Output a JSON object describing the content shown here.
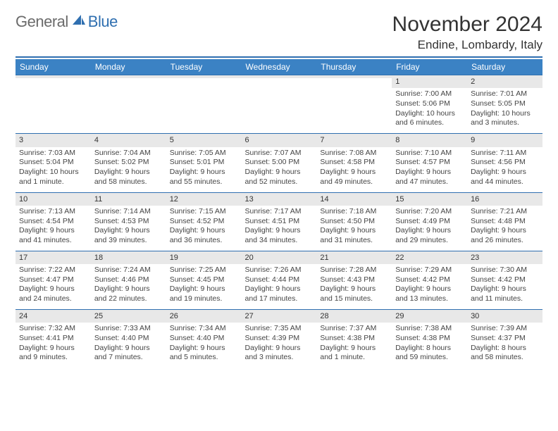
{
  "logo": {
    "gray": "General",
    "blue": "Blue"
  },
  "title": "November 2024",
  "location": "Endine, Lombardy, Italy",
  "colors": {
    "header_bg": "#3b82c4",
    "rule": "#2f6fb0",
    "daynum_bg": "#e8e8e8",
    "text": "#333333",
    "logo_gray": "#6b6b6b",
    "logo_blue": "#2f6fb0"
  },
  "weekdays": [
    "Sunday",
    "Monday",
    "Tuesday",
    "Wednesday",
    "Thursday",
    "Friday",
    "Saturday"
  ],
  "weeks": [
    [
      {
        "day": "",
        "sunrise": "",
        "sunset": "",
        "daylight": ""
      },
      {
        "day": "",
        "sunrise": "",
        "sunset": "",
        "daylight": ""
      },
      {
        "day": "",
        "sunrise": "",
        "sunset": "",
        "daylight": ""
      },
      {
        "day": "",
        "sunrise": "",
        "sunset": "",
        "daylight": ""
      },
      {
        "day": "",
        "sunrise": "",
        "sunset": "",
        "daylight": ""
      },
      {
        "day": "1",
        "sunrise": "Sunrise: 7:00 AM",
        "sunset": "Sunset: 5:06 PM",
        "daylight": "Daylight: 10 hours and 6 minutes."
      },
      {
        "day": "2",
        "sunrise": "Sunrise: 7:01 AM",
        "sunset": "Sunset: 5:05 PM",
        "daylight": "Daylight: 10 hours and 3 minutes."
      }
    ],
    [
      {
        "day": "3",
        "sunrise": "Sunrise: 7:03 AM",
        "sunset": "Sunset: 5:04 PM",
        "daylight": "Daylight: 10 hours and 1 minute."
      },
      {
        "day": "4",
        "sunrise": "Sunrise: 7:04 AM",
        "sunset": "Sunset: 5:02 PM",
        "daylight": "Daylight: 9 hours and 58 minutes."
      },
      {
        "day": "5",
        "sunrise": "Sunrise: 7:05 AM",
        "sunset": "Sunset: 5:01 PM",
        "daylight": "Daylight: 9 hours and 55 minutes."
      },
      {
        "day": "6",
        "sunrise": "Sunrise: 7:07 AM",
        "sunset": "Sunset: 5:00 PM",
        "daylight": "Daylight: 9 hours and 52 minutes."
      },
      {
        "day": "7",
        "sunrise": "Sunrise: 7:08 AM",
        "sunset": "Sunset: 4:58 PM",
        "daylight": "Daylight: 9 hours and 49 minutes."
      },
      {
        "day": "8",
        "sunrise": "Sunrise: 7:10 AM",
        "sunset": "Sunset: 4:57 PM",
        "daylight": "Daylight: 9 hours and 47 minutes."
      },
      {
        "day": "9",
        "sunrise": "Sunrise: 7:11 AM",
        "sunset": "Sunset: 4:56 PM",
        "daylight": "Daylight: 9 hours and 44 minutes."
      }
    ],
    [
      {
        "day": "10",
        "sunrise": "Sunrise: 7:13 AM",
        "sunset": "Sunset: 4:54 PM",
        "daylight": "Daylight: 9 hours and 41 minutes."
      },
      {
        "day": "11",
        "sunrise": "Sunrise: 7:14 AM",
        "sunset": "Sunset: 4:53 PM",
        "daylight": "Daylight: 9 hours and 39 minutes."
      },
      {
        "day": "12",
        "sunrise": "Sunrise: 7:15 AM",
        "sunset": "Sunset: 4:52 PM",
        "daylight": "Daylight: 9 hours and 36 minutes."
      },
      {
        "day": "13",
        "sunrise": "Sunrise: 7:17 AM",
        "sunset": "Sunset: 4:51 PM",
        "daylight": "Daylight: 9 hours and 34 minutes."
      },
      {
        "day": "14",
        "sunrise": "Sunrise: 7:18 AM",
        "sunset": "Sunset: 4:50 PM",
        "daylight": "Daylight: 9 hours and 31 minutes."
      },
      {
        "day": "15",
        "sunrise": "Sunrise: 7:20 AM",
        "sunset": "Sunset: 4:49 PM",
        "daylight": "Daylight: 9 hours and 29 minutes."
      },
      {
        "day": "16",
        "sunrise": "Sunrise: 7:21 AM",
        "sunset": "Sunset: 4:48 PM",
        "daylight": "Daylight: 9 hours and 26 minutes."
      }
    ],
    [
      {
        "day": "17",
        "sunrise": "Sunrise: 7:22 AM",
        "sunset": "Sunset: 4:47 PM",
        "daylight": "Daylight: 9 hours and 24 minutes."
      },
      {
        "day": "18",
        "sunrise": "Sunrise: 7:24 AM",
        "sunset": "Sunset: 4:46 PM",
        "daylight": "Daylight: 9 hours and 22 minutes."
      },
      {
        "day": "19",
        "sunrise": "Sunrise: 7:25 AM",
        "sunset": "Sunset: 4:45 PM",
        "daylight": "Daylight: 9 hours and 19 minutes."
      },
      {
        "day": "20",
        "sunrise": "Sunrise: 7:26 AM",
        "sunset": "Sunset: 4:44 PM",
        "daylight": "Daylight: 9 hours and 17 minutes."
      },
      {
        "day": "21",
        "sunrise": "Sunrise: 7:28 AM",
        "sunset": "Sunset: 4:43 PM",
        "daylight": "Daylight: 9 hours and 15 minutes."
      },
      {
        "day": "22",
        "sunrise": "Sunrise: 7:29 AM",
        "sunset": "Sunset: 4:42 PM",
        "daylight": "Daylight: 9 hours and 13 minutes."
      },
      {
        "day": "23",
        "sunrise": "Sunrise: 7:30 AM",
        "sunset": "Sunset: 4:42 PM",
        "daylight": "Daylight: 9 hours and 11 minutes."
      }
    ],
    [
      {
        "day": "24",
        "sunrise": "Sunrise: 7:32 AM",
        "sunset": "Sunset: 4:41 PM",
        "daylight": "Daylight: 9 hours and 9 minutes."
      },
      {
        "day": "25",
        "sunrise": "Sunrise: 7:33 AM",
        "sunset": "Sunset: 4:40 PM",
        "daylight": "Daylight: 9 hours and 7 minutes."
      },
      {
        "day": "26",
        "sunrise": "Sunrise: 7:34 AM",
        "sunset": "Sunset: 4:40 PM",
        "daylight": "Daylight: 9 hours and 5 minutes."
      },
      {
        "day": "27",
        "sunrise": "Sunrise: 7:35 AM",
        "sunset": "Sunset: 4:39 PM",
        "daylight": "Daylight: 9 hours and 3 minutes."
      },
      {
        "day": "28",
        "sunrise": "Sunrise: 7:37 AM",
        "sunset": "Sunset: 4:38 PM",
        "daylight": "Daylight: 9 hours and 1 minute."
      },
      {
        "day": "29",
        "sunrise": "Sunrise: 7:38 AM",
        "sunset": "Sunset: 4:38 PM",
        "daylight": "Daylight: 8 hours and 59 minutes."
      },
      {
        "day": "30",
        "sunrise": "Sunrise: 7:39 AM",
        "sunset": "Sunset: 4:37 PM",
        "daylight": "Daylight: 8 hours and 58 minutes."
      }
    ]
  ]
}
